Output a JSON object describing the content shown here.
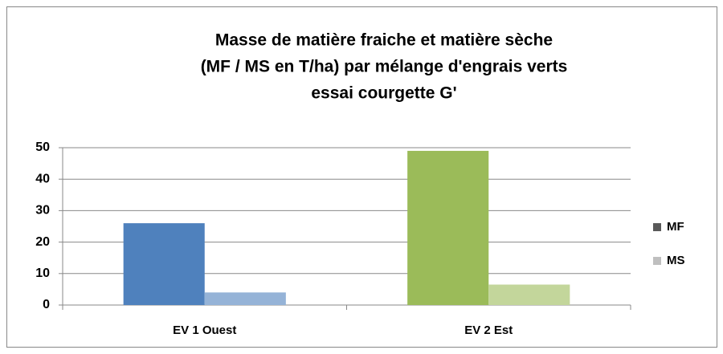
{
  "chart_data": {
    "type": "bar",
    "title": [
      "Masse de matière fraiche  et matière sèche",
      "(MF / MS en T/ha) par mélange d'engrais verts",
      "essai courgette G'"
    ],
    "categories": [
      "EV 1 Ouest",
      "EV 2 Est"
    ],
    "series": [
      {
        "name": "MF",
        "color": "#595959",
        "point_colors": [
          "#4f81bd",
          "#9bbb59"
        ],
        "values": [
          26,
          49
        ]
      },
      {
        "name": "MS",
        "color": "#bfbfbf",
        "point_colors": [
          "#95b3d7",
          "#c3d69b"
        ],
        "values": [
          4,
          6.5
        ]
      }
    ],
    "ylim": [
      0,
      50
    ],
    "yticks": [
      0,
      10,
      20,
      30,
      40,
      50
    ],
    "grid": true,
    "legend": "right"
  }
}
